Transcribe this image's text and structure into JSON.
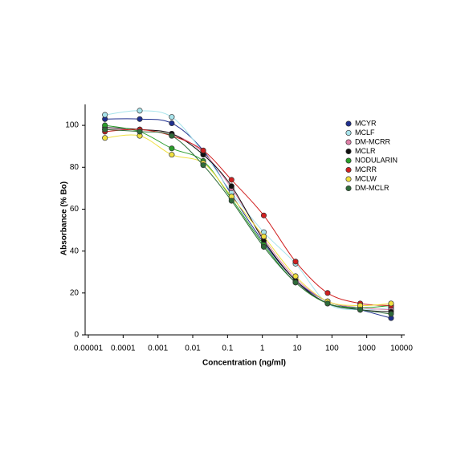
{
  "chart_data": {
    "type": "scatter",
    "xlabel": "Concentration (ng/ml)",
    "ylabel": "Absorbance (% Bo)",
    "xscale": "log",
    "xlim": [
      1e-05,
      10000
    ],
    "xticks": [
      1e-05,
      0.0001,
      0.001,
      0.01,
      0.1,
      1,
      10,
      100,
      1000,
      10000
    ],
    "ylim": [
      0,
      110
    ],
    "yticks": [
      0,
      20,
      40,
      60,
      80,
      100
    ],
    "legend": "upper right",
    "x": [
      3e-05,
      0.0003,
      0.0025,
      0.02,
      0.13,
      1.1,
      9,
      75,
      650,
      5000
    ],
    "series": [
      {
        "name": "MCYR",
        "color": "#1f2f8f",
        "values": [
          103,
          103,
          101,
          88,
          67,
          44,
          26,
          16,
          12,
          8
        ]
      },
      {
        "name": "MCLF",
        "color": "#a8e4ec",
        "values": [
          105,
          107,
          104,
          87,
          68,
          49,
          34,
          15,
          12,
          13
        ]
      },
      {
        "name": "DM-MCRR",
        "color": "#e080a8",
        "values": [
          98,
          98,
          96,
          87,
          70,
          46,
          27,
          16,
          13,
          12
        ]
      },
      {
        "name": "MCLR",
        "color": "#111111",
        "values": [
          99,
          98,
          96,
          86,
          71,
          45,
          26,
          15,
          12,
          11
        ]
      },
      {
        "name": "NODULARIN",
        "color": "#2a9d2a",
        "values": [
          100,
          97,
          89,
          83,
          65,
          43,
          25,
          15,
          13,
          14
        ]
      },
      {
        "name": "MCRR",
        "color": "#d02020",
        "values": [
          97,
          98,
          95,
          88,
          74,
          57,
          35,
          20,
          15,
          14
        ]
      },
      {
        "name": "MCLW",
        "color": "#f0e040",
        "values": [
          94,
          95,
          86,
          82,
          66,
          47,
          28,
          16,
          14,
          15
        ]
      },
      {
        "name": "DM-MCLR",
        "color": "#2e6b3a",
        "values": [
          98,
          97,
          95,
          81,
          64,
          42,
          25,
          15,
          12,
          10
        ]
      }
    ]
  }
}
